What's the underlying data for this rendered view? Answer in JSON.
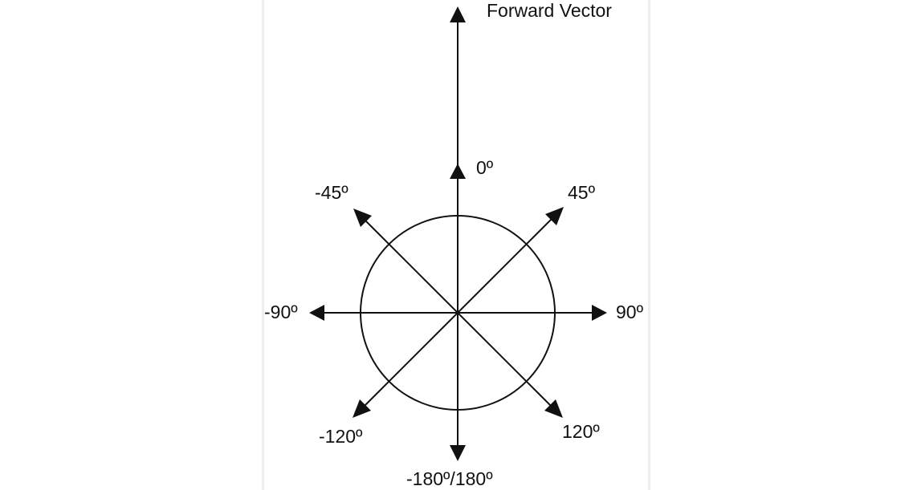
{
  "diagram": {
    "title": "Forward Vector",
    "labels": {
      "deg_0": "0º",
      "deg_45": "45º",
      "deg_neg45": "-45º",
      "deg_90": "90º",
      "deg_neg90": "-90º",
      "deg_120": "120º",
      "deg_neg120": "-120º",
      "deg_180": "-180º/180º"
    },
    "colors": {
      "stroke": "#111111",
      "panel_border": "#eeeeee",
      "background": "#ffffff"
    }
  }
}
